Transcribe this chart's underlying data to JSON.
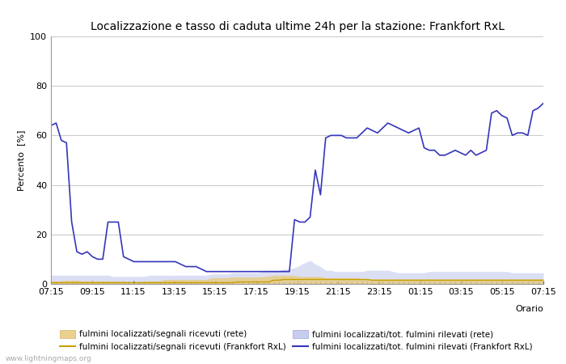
{
  "title": "Localizzazione e tasso di caduta ultime 24h per la stazione: Frankfort RxL",
  "ylabel": "Percento  [%]",
  "xlabel": "Orario",
  "ylim": [
    0,
    100
  ],
  "yticks": [
    0,
    20,
    40,
    60,
    80,
    100
  ],
  "x_labels": [
    "07:15",
    "09:15",
    "11:15",
    "13:15",
    "15:15",
    "17:15",
    "19:15",
    "21:15",
    "23:15",
    "01:15",
    "03:15",
    "05:15",
    "07:15"
  ],
  "background_color": "#ffffff",
  "plot_bg_color": "#ffffff",
  "grid_color": "#cccccc",
  "watermark": "www.lightningmaps.org",
  "legend": [
    {
      "label": "fulmini localizzati/segnali ricevuti (rete)",
      "color": "#e8c97a",
      "type": "fill"
    },
    {
      "label": "fulmini localizzati/segnali ricevuti (Frankfort RxL)",
      "color": "#c8a000",
      "type": "line"
    },
    {
      "label": "fulmini localizzati/tot. fulmini rilevati (rete)",
      "color": "#b0b8e8",
      "type": "fill"
    },
    {
      "label": "fulmini localizzati/tot. fulmini rilevati (Frankfort RxL)",
      "color": "#3535bb",
      "type": "line"
    }
  ],
  "n_points": 96,
  "fill_rete_signals": [
    1.2,
    1.2,
    1.2,
    1.5,
    1.5,
    1.5,
    1.2,
    1.2,
    1.2,
    1.2,
    1.2,
    1.2,
    1.2,
    1.2,
    1.2,
    0.8,
    0.8,
    0.8,
    1.2,
    1.2,
    1.2,
    1.2,
    1.8,
    1.8,
    1.8,
    1.8,
    1.8,
    1.8,
    1.8,
    1.8,
    1.8,
    2.5,
    2.5,
    2.5,
    2.5,
    2.8,
    2.8,
    2.8,
    2.8,
    2.8,
    2.8,
    3.0,
    3.2,
    3.5,
    3.5,
    3.5,
    3.5,
    3.5,
    3.0,
    3.0,
    3.0,
    3.0,
    3.0,
    2.5,
    2.5,
    2.5,
    2.5,
    2.5,
    2.5,
    2.5,
    2.0,
    2.0,
    2.0,
    2.0,
    2.0,
    2.0,
    2.0,
    2.0,
    2.0,
    2.0,
    2.0,
    2.0,
    2.0,
    2.0,
    2.0,
    2.0,
    2.0,
    2.0,
    2.0,
    2.0,
    2.0,
    2.0,
    2.0,
    2.0,
    2.0,
    2.0,
    2.0,
    2.0,
    2.0,
    2.0,
    2.0,
    2.0,
    2.0,
    2.0,
    2.0,
    2.0
  ],
  "line_frankfort_signals": [
    0.5,
    0.5,
    0.5,
    0.5,
    0.5,
    0.5,
    0.5,
    0.5,
    0.5,
    0.5,
    0.5,
    0.5,
    0.5,
    0.5,
    0.5,
    0.5,
    0.5,
    0.5,
    0.5,
    0.5,
    0.5,
    0.5,
    0.5,
    0.5,
    0.5,
    0.5,
    0.5,
    0.5,
    0.5,
    0.5,
    0.5,
    0.5,
    0.5,
    0.5,
    0.5,
    0.5,
    0.8,
    0.8,
    0.8,
    0.8,
    0.8,
    0.8,
    0.8,
    1.5,
    1.5,
    1.8,
    1.8,
    1.8,
    1.8,
    1.8,
    1.8,
    1.8,
    1.8,
    1.8,
    1.8,
    1.8,
    1.8,
    1.8,
    1.8,
    1.8,
    1.8,
    1.8,
    1.5,
    1.5,
    1.5,
    1.5,
    1.5,
    1.5,
    1.5,
    1.5,
    1.5,
    1.5,
    1.5,
    1.5,
    1.5,
    1.5,
    1.5,
    1.5,
    1.5,
    1.5,
    1.5,
    1.5,
    1.5,
    1.5,
    1.5,
    1.5,
    1.5,
    1.5,
    1.5,
    1.5,
    1.5,
    1.5,
    1.5,
    1.5,
    1.5,
    1.5
  ],
  "fill_rete_total": [
    3.5,
    3.5,
    3.5,
    3.5,
    3.5,
    3.5,
    3.5,
    3.5,
    3.5,
    3.5,
    3.5,
    3.5,
    3.0,
    3.0,
    3.0,
    3.0,
    3.0,
    3.0,
    3.0,
    3.5,
    3.5,
    3.5,
    3.5,
    3.5,
    3.5,
    3.5,
    3.5,
    3.5,
    3.5,
    3.5,
    3.5,
    4.0,
    4.0,
    4.0,
    4.0,
    4.5,
    4.5,
    4.5,
    4.5,
    4.5,
    4.5,
    5.5,
    5.5,
    5.5,
    5.5,
    6.0,
    6.0,
    6.5,
    7.5,
    8.5,
    9.5,
    8.0,
    7.0,
    5.5,
    5.5,
    5.0,
    5.0,
    5.0,
    5.0,
    5.0,
    5.0,
    5.5,
    5.5,
    5.5,
    5.5,
    5.5,
    5.0,
    4.5,
    4.5,
    4.5,
    4.5,
    4.5,
    4.5,
    5.0,
    5.0,
    5.0,
    5.0,
    5.0,
    5.0,
    5.0,
    5.0,
    5.0,
    5.0,
    5.0,
    5.0,
    5.0,
    5.0,
    5.0,
    5.0,
    4.5,
    4.5,
    4.5,
    4.5,
    4.5,
    4.5,
    4.5
  ],
  "line_frankfort_total": [
    64,
    65,
    58,
    57,
    25,
    13,
    12,
    13,
    11,
    10,
    10,
    25,
    25,
    25,
    11,
    10,
    9,
    9,
    9,
    9,
    9,
    9,
    9,
    9,
    9,
    8,
    7,
    7,
    7,
    6,
    5,
    5,
    5,
    5,
    5,
    5,
    5,
    5,
    5,
    5,
    5,
    5,
    5,
    5,
    5,
    5,
    5,
    26,
    25,
    25,
    27,
    46,
    36,
    59,
    60,
    60,
    60,
    59,
    59,
    59,
    61,
    63,
    62,
    61,
    63,
    65,
    64,
    63,
    62,
    61,
    62,
    63,
    55,
    54,
    54,
    52,
    52,
    53,
    54,
    53,
    52,
    54,
    52,
    53,
    54,
    69,
    70,
    68,
    67,
    60,
    61,
    61,
    60,
    70,
    71,
    73
  ]
}
